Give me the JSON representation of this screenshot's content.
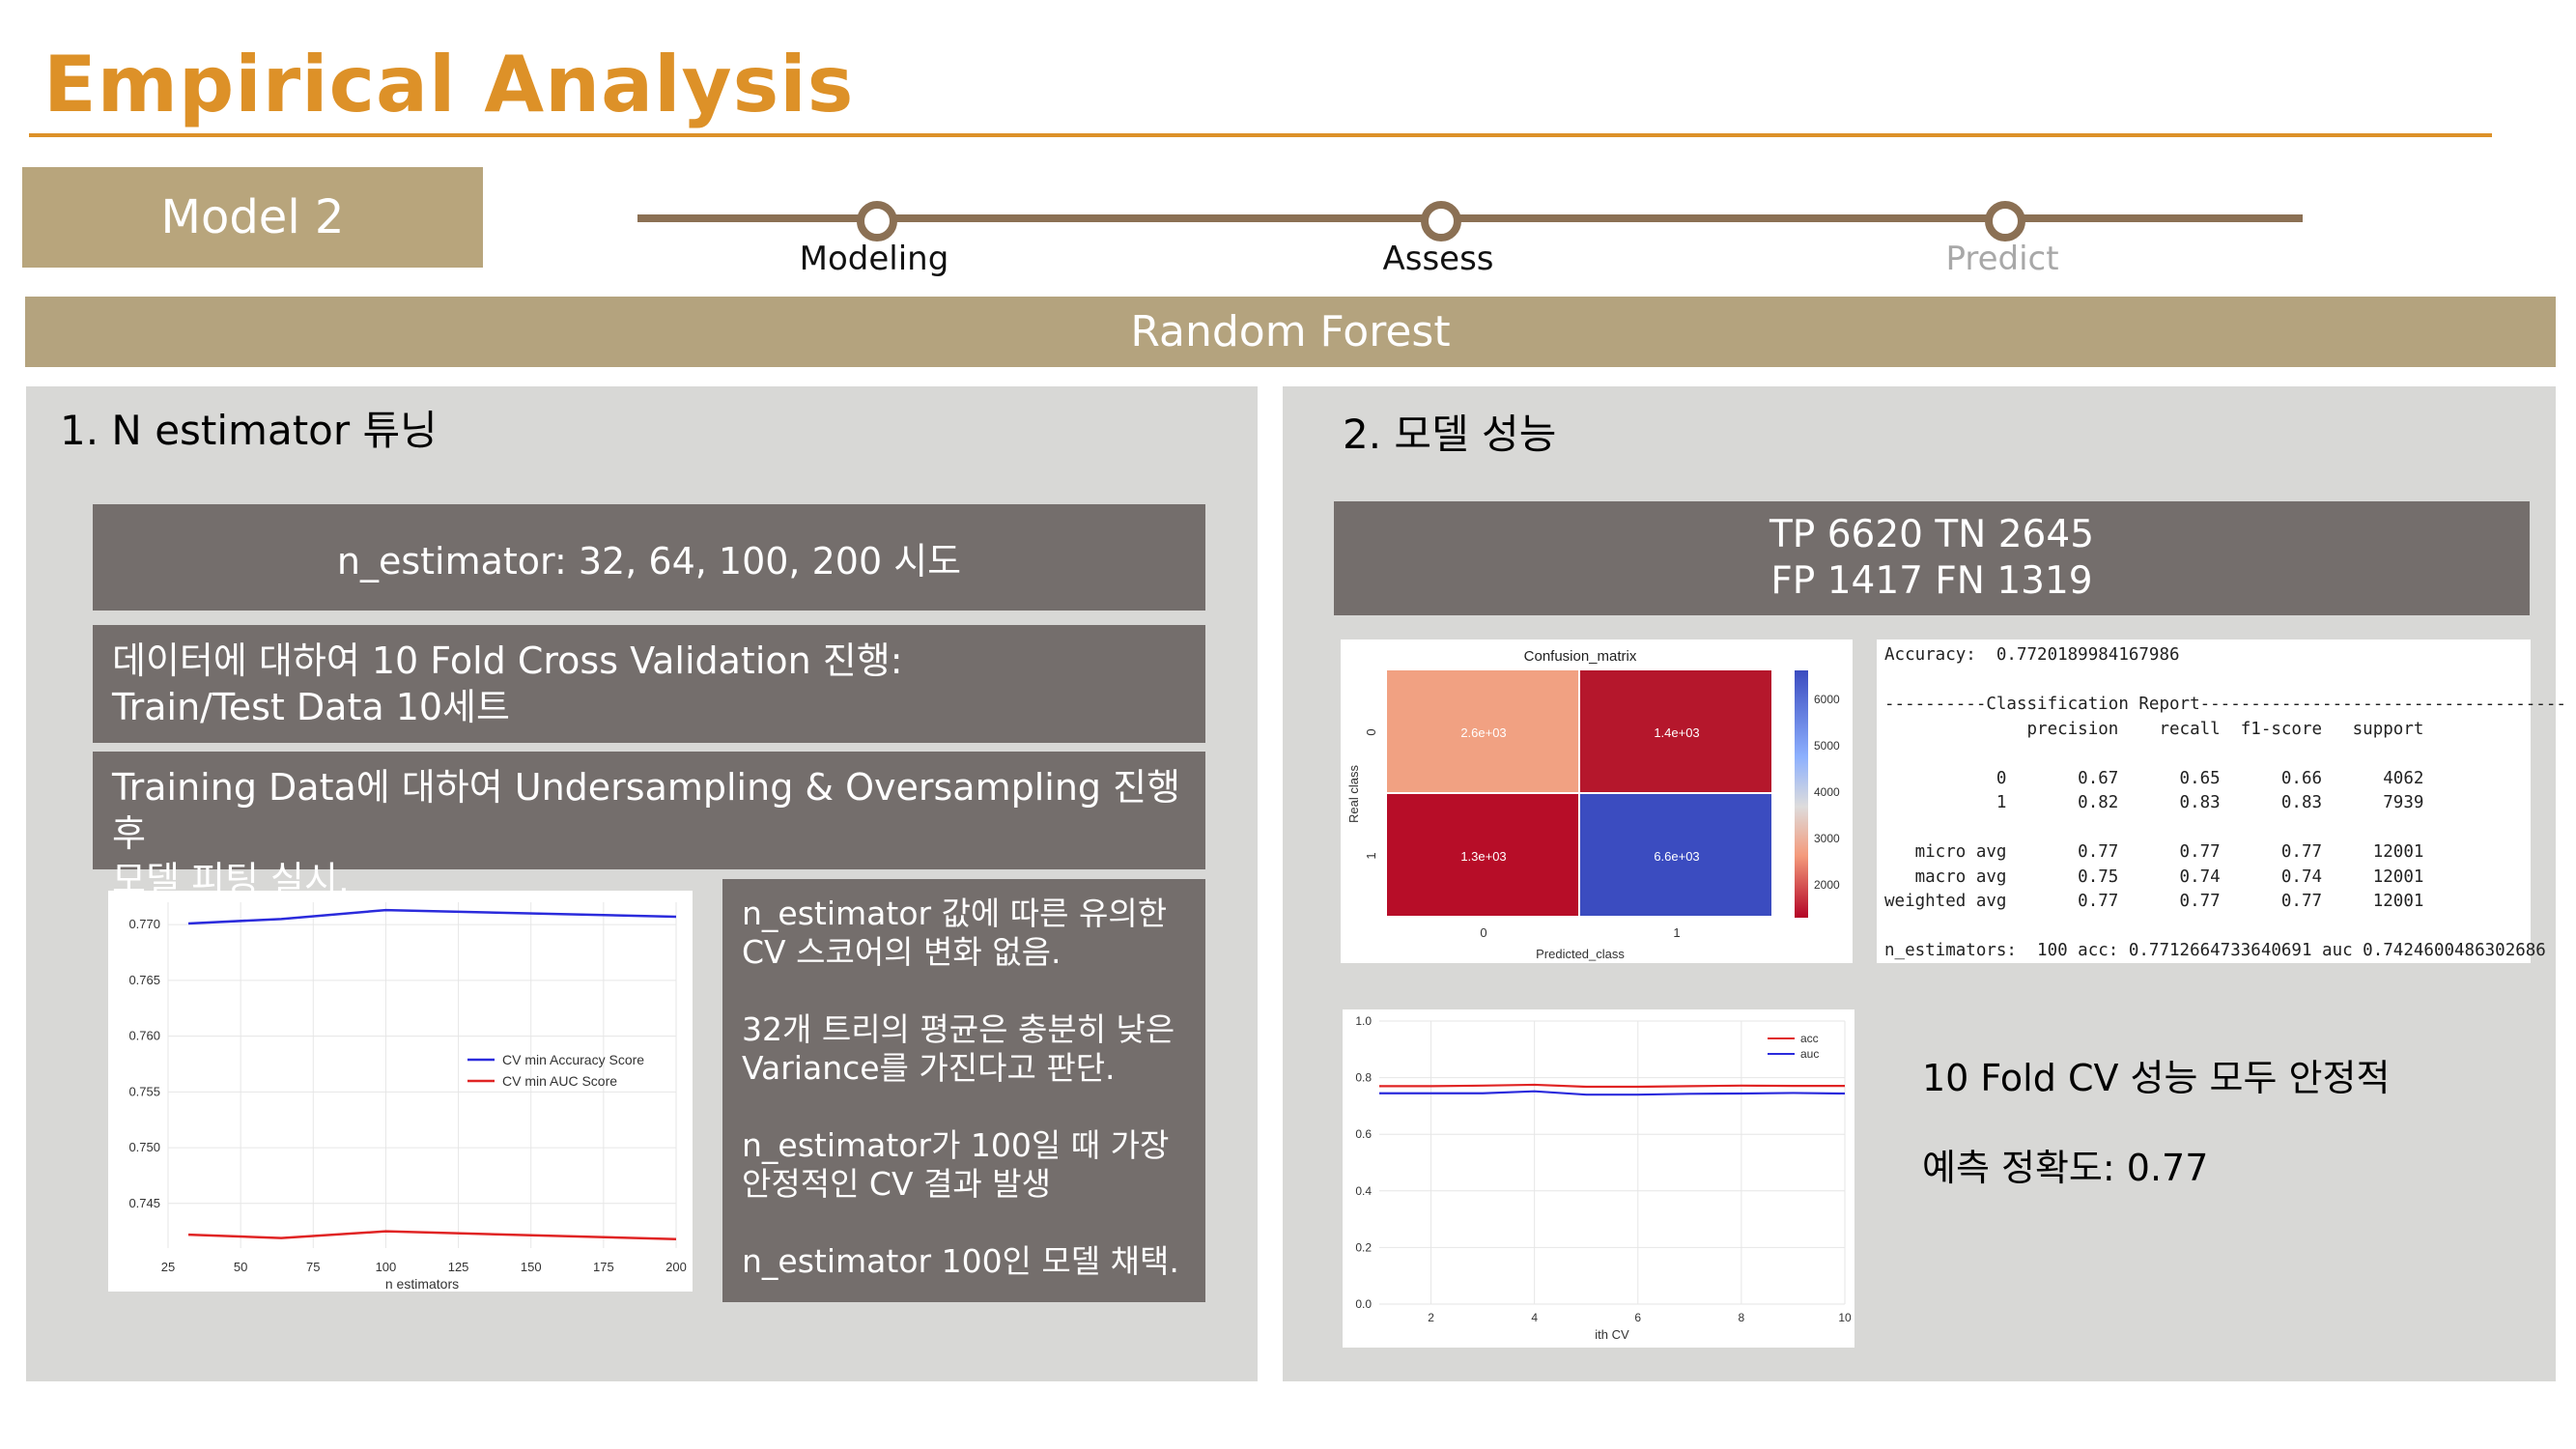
{
  "header": {
    "title": "Empirical Analysis",
    "model_badge": "Model 2"
  },
  "steps": [
    {
      "label": "Modeling",
      "active": true
    },
    {
      "label": "Assess",
      "active": true
    },
    {
      "label": "Predict",
      "active": false
    }
  ],
  "band": {
    "label": "Random Forest"
  },
  "left": {
    "title": "1. N estimator 튜닝",
    "box1": "n_estimator: 32, 64, 100, 200 시도",
    "box2_line1": "데이터에 대하여 10 Fold Cross Validation 진행:",
    "box2_line2": "Train/Test Data 10세트",
    "box3_line1": "Training Data에 대하여 Undersampling & Oversampling 진행 후",
    "box3_line2": "모델 피팅 실시.",
    "notes": [
      [
        "n_estimator 값에 따른 유의한",
        "CV 스코어의 변화 없음."
      ],
      [
        "32개 트리의 평균은 충분히 낮은",
        "Variance를 가진다고 판단."
      ],
      [
        "n_estimator가 100일 때 가장",
        "안정적인 CV 결과 발생"
      ],
      [
        "n_estimator 100인 모델 채택."
      ]
    ]
  },
  "right": {
    "title": "2. 모델 성능",
    "tp_line1": "TP 6620 TN 2645",
    "tp_line2": "FP 1417 FN 1319",
    "summary1": "10 Fold CV 성능 모두 안정적",
    "summary2": "예측 정확도: 0.77"
  },
  "chart_data": [
    {
      "type": "line",
      "x": [
        32,
        64,
        100,
        200
      ],
      "xlabel": "n estimators",
      "ylabel": "",
      "xlim": [
        25,
        200
      ],
      "ylim": [
        0.741,
        0.772
      ],
      "xticks": [
        25,
        50,
        75,
        100,
        125,
        150,
        175,
        200
      ],
      "yticks": [
        0.745,
        0.75,
        0.755,
        0.76,
        0.765,
        0.77
      ],
      "legend": "right",
      "series": [
        {
          "name": "CV min Accuracy Score",
          "color": "#2b2bdc",
          "values": [
            0.7701,
            0.7705,
            0.7713,
            0.7707
          ]
        },
        {
          "name": "CV min AUC Score",
          "color": "#e02424",
          "values": [
            0.7422,
            0.7419,
            0.7425,
            0.7418
          ]
        }
      ]
    },
    {
      "type": "heatmap",
      "title": "Confusion_matrix",
      "xlabel": "Predicted_class",
      "ylabel": "Real class",
      "xticks": [
        "0",
        "1"
      ],
      "yticks": [
        "0",
        "1"
      ],
      "cells": [
        [
          "2.6e+03",
          "1.4e+03"
        ],
        [
          "1.3e+03",
          "6.6e+03"
        ]
      ],
      "cell_colors": [
        [
          "#f1a182",
          "#b5172c"
        ],
        [
          "#b70d28",
          "#3b4cc0"
        ]
      ],
      "colorbar_ticks": [
        "6000",
        "5000",
        "4000",
        "3000",
        "2000"
      ]
    },
    {
      "type": "line",
      "x": [
        1,
        2,
        3,
        4,
        5,
        6,
        7,
        8,
        9,
        10
      ],
      "xlabel": "ith CV",
      "xlim": [
        1,
        10
      ],
      "ylim": [
        0,
        1
      ],
      "xticks": [
        2,
        4,
        6,
        8,
        10
      ],
      "yticks": [
        "0.0",
        "0.2",
        "0.4",
        "0.6",
        "0.8",
        "1.0"
      ],
      "legend": "top-right",
      "series": [
        {
          "name": "acc",
          "color": "#e02424",
          "values": [
            0.77,
            0.77,
            0.772,
            0.775,
            0.768,
            0.768,
            0.77,
            0.772,
            0.771,
            0.771
          ]
        },
        {
          "name": "auc",
          "color": "#2b2bdc",
          "values": [
            0.745,
            0.745,
            0.745,
            0.752,
            0.74,
            0.74,
            0.743,
            0.744,
            0.746,
            0.744
          ]
        }
      ]
    }
  ],
  "report": {
    "lines": [
      "Accuracy:  0.7720189984167986",
      "",
      "----------Classification Report------------------------------------",
      "              precision    recall  f1-score   support",
      "",
      "           0       0.67      0.65      0.66      4062",
      "           1       0.82      0.83      0.83      7939",
      "",
      "   micro avg       0.77      0.77      0.77     12001",
      "   macro avg       0.75      0.74      0.74     12001",
      "weighted avg       0.77      0.77      0.77     12001",
      "",
      "n_estimators:  100 acc: 0.7712664733640691 auc 0.7424600486302686"
    ]
  }
}
